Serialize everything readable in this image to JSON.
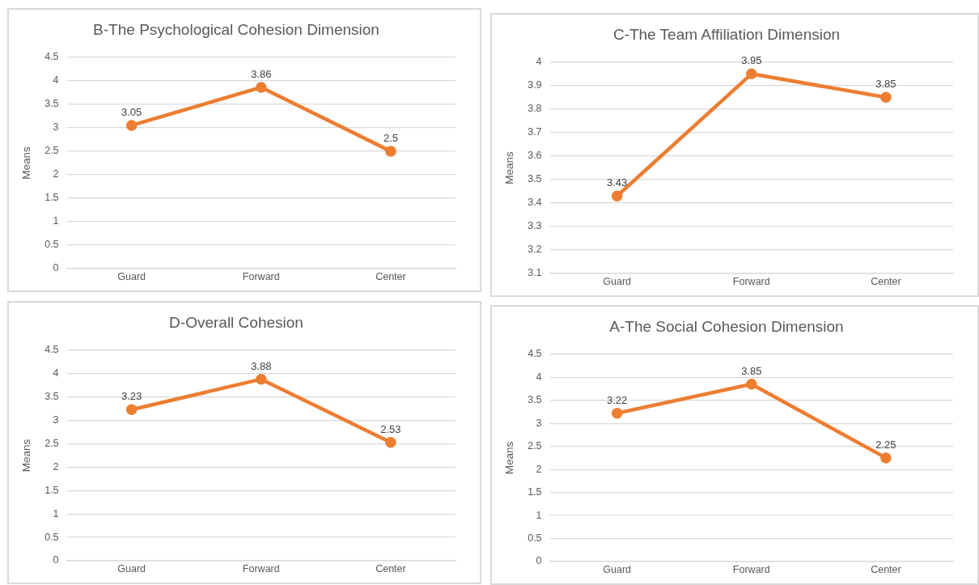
{
  "chart_data": [
    {
      "type": "line",
      "title": "B-The Psychological Cohesion Dimension",
      "ylabel": "Means",
      "categories": [
        "Guard",
        "Forward",
        "Center"
      ],
      "series": [
        {
          "color": "#ed7d31",
          "values": [
            3.05,
            3.86,
            2.5
          ]
        }
      ],
      "ylim": [
        0,
        4.5
      ],
      "yticks": [
        0,
        0.5,
        1,
        1.5,
        2,
        2.5,
        3,
        3.5,
        4,
        4.5
      ],
      "grid": "y",
      "legend": false,
      "marker": "circle",
      "line_style": "solid",
      "data_labels": true
    },
    {
      "type": "line",
      "title": "C-The Team Affiliation Dimension",
      "ylabel": "Means",
      "categories": [
        "Guard",
        "Forward",
        "Center"
      ],
      "series": [
        {
          "color": "#ed7d31",
          "values": [
            3.43,
            3.95,
            3.85
          ]
        }
      ],
      "ylim": [
        3.1,
        4
      ],
      "yticks": [
        3.1,
        3.2,
        3.3,
        3.4,
        3.5,
        3.6,
        3.7,
        3.8,
        3.9,
        4
      ],
      "grid": "y",
      "legend": false,
      "marker": "circle",
      "line_style": "solid",
      "data_labels": true
    },
    {
      "type": "line",
      "title": "D-Overall Cohesion",
      "ylabel": "Means",
      "categories": [
        "Guard",
        "Forward",
        "Center"
      ],
      "series": [
        {
          "color": "#ed7d31",
          "values": [
            3.23,
            3.88,
            2.53
          ]
        }
      ],
      "ylim": [
        0,
        4.5
      ],
      "yticks": [
        0,
        0.5,
        1,
        1.5,
        2,
        2.5,
        3,
        3.5,
        4,
        4.5
      ],
      "grid": "y",
      "legend": false,
      "marker": "circle",
      "line_style": "solid",
      "data_labels": true
    },
    {
      "type": "line",
      "title": "A-The Social Cohesion Dimension",
      "ylabel": "Means",
      "categories": [
        "Guard",
        "Forward",
        "Center"
      ],
      "series": [
        {
          "color": "#ed7d31",
          "values": [
            3.22,
            3.85,
            2.25
          ]
        }
      ],
      "ylim": [
        0,
        4.5
      ],
      "yticks": [
        0,
        0.5,
        1,
        1.5,
        2,
        2.5,
        3,
        3.5,
        4,
        4.5
      ],
      "grid": "y",
      "legend": false,
      "marker": "circle",
      "line_style": "solid",
      "data_labels": true
    }
  ]
}
